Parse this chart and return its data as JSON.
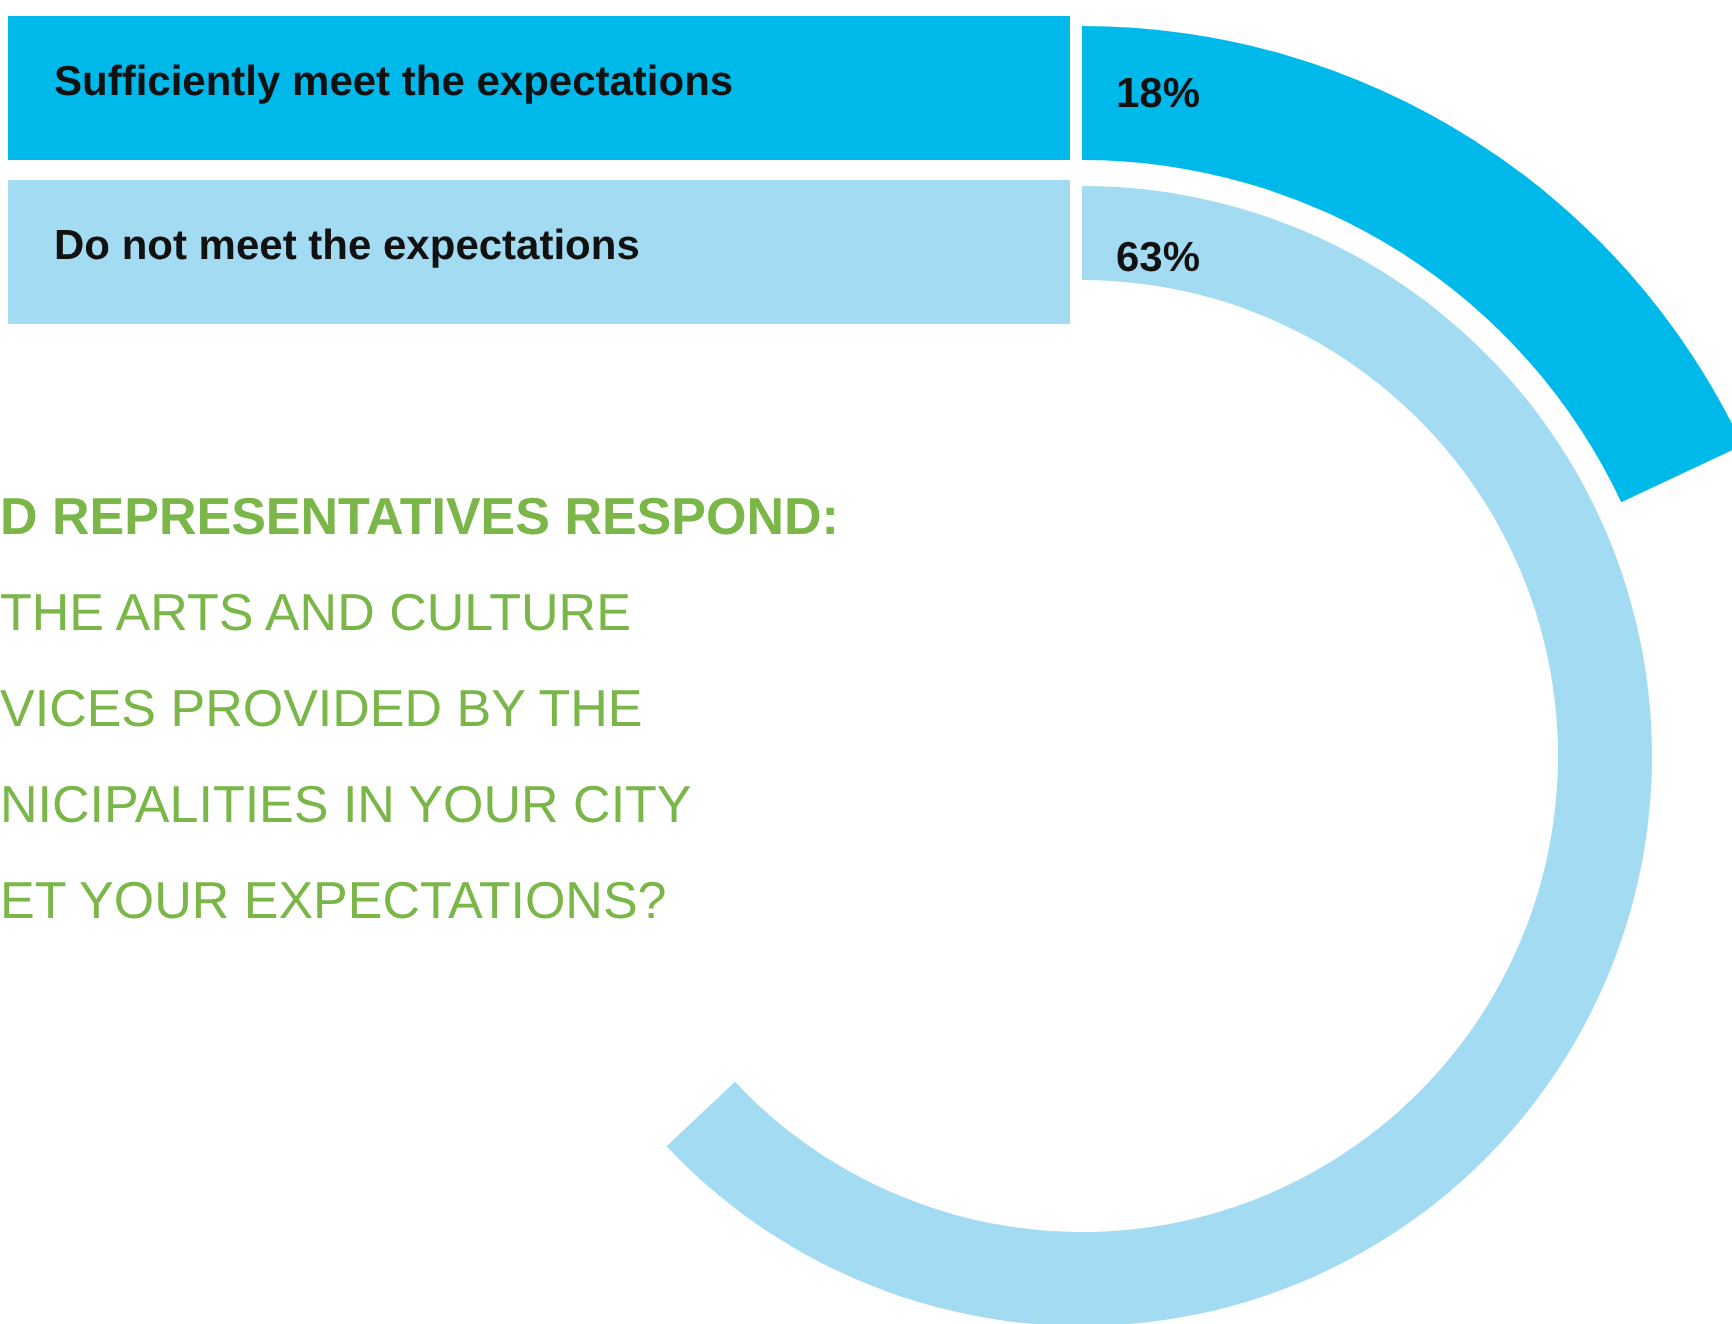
{
  "chart_data": {
    "type": "other",
    "title": "D REPRESENTATIVES RESPOND:",
    "annotations": [
      "THE ARTS AND CULTURE",
      "VICES PROVIDED BY THE",
      "NICIPALITIES IN YOUR CITY",
      "ET YOUR EXPECTATIONS?"
    ],
    "categories": [
      "Sufficiently meet the expectations",
      "Do not meet the expectations"
    ],
    "values": [
      18,
      63
    ],
    "value_labels": [
      "18%",
      "63%"
    ],
    "colors": [
      "#00b9eb",
      "#a3dcf2"
    ]
  }
}
